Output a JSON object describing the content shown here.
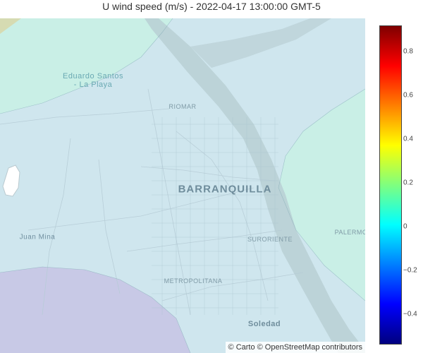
{
  "title": "U wind speed (m/s) - 2022-04-17 13:00:00 GMT-5",
  "map": {
    "basemap": "Carto positron",
    "labels": {
      "eduardo_santos": "Eduardo Santos",
      "la_playa": "- La Playa",
      "riomar": "RIOMAR",
      "barranquilla": "BARRANQUILLA",
      "suroriente": "SURORIENTE",
      "juan_mina": "Juan Mina",
      "metropolitana": "METROPOLITANA",
      "soledad": "Soledad",
      "palermo": "PALERMO"
    },
    "contour_colors": {
      "light_blue": "#c9e3ee",
      "pale_cyan": "#c8efe9",
      "lavender": "#c7c9e6",
      "khaki": "#d9dcb3",
      "river": "#b7c6cc"
    }
  },
  "attribution": "© Carto © OpenStreetMap contributors",
  "colorbar": {
    "title": "",
    "colorscale": "Jet",
    "range": [
      -0.54,
      0.92
    ],
    "ticks": [
      {
        "label": "0.8",
        "value": 0.8
      },
      {
        "label": "0.6",
        "value": 0.6
      },
      {
        "label": "0.4",
        "value": 0.4
      },
      {
        "label": "0.2",
        "value": 0.2
      },
      {
        "label": "0",
        "value": 0.0
      },
      {
        "label": "−0.2",
        "value": -0.2
      },
      {
        "label": "−0.4",
        "value": -0.4
      }
    ],
    "stops": [
      "#00007f",
      "#0000ff",
      "#007fff",
      "#00ffff",
      "#7fff7f",
      "#ffff00",
      "#ff7f00",
      "#ff0000",
      "#7f0000"
    ]
  }
}
